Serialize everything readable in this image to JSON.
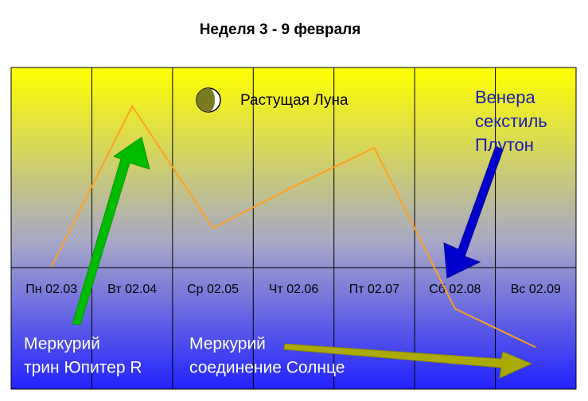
{
  "chart_data": {
    "type": "line",
    "title": "Неделя 3 - 9 февраля",
    "categories": [
      "Пн 02.03",
      "Вт 02.04",
      "Ср 02.05",
      "Чт 02.06",
      "Пт 02.07",
      "Сб 02.08",
      "Вс 02.09"
    ],
    "series": [
      {
        "color": "#ffa020",
        "values": [
          38,
          88,
          50,
          63,
          75,
          25,
          13
        ]
      }
    ],
    "ylim": [
      0,
      100
    ],
    "annotations": [
      {
        "lines": [
          "Растущая Луна"
        ]
      },
      {
        "lines": [
          "Венера",
          "секстиль",
          "Плутон"
        ]
      },
      {
        "lines": [
          "Меркурий",
          "трин Юпитер R"
        ]
      },
      {
        "lines": [
          "Меркурий",
          "соединение Солнце"
        ]
      }
    ]
  }
}
